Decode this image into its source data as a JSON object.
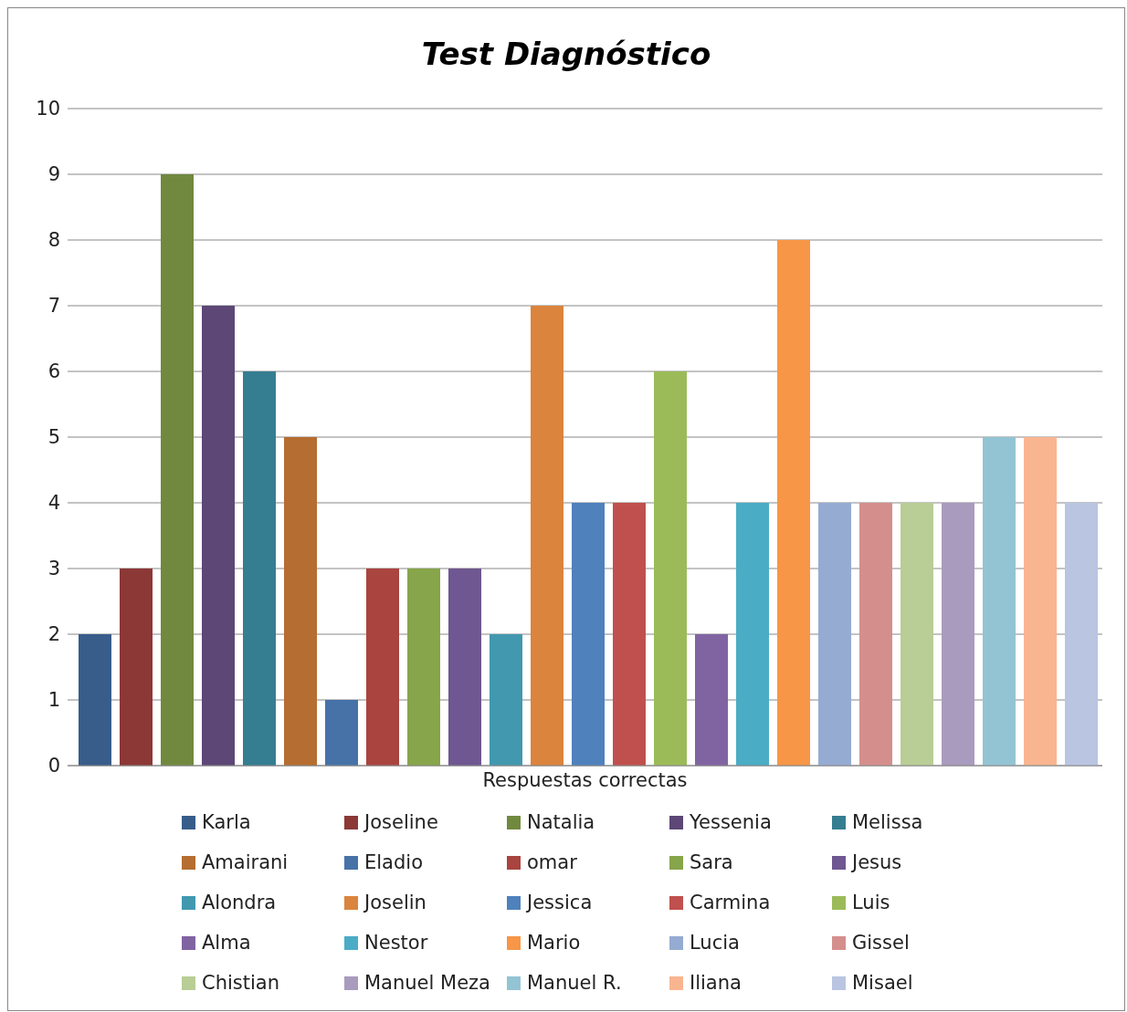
{
  "chart_data": {
    "type": "bar",
    "title": "Test Diagnóstico",
    "categories": [
      "Respuestas correctas"
    ],
    "ylim": [
      0,
      10
    ],
    "yticks": [
      0,
      1,
      2,
      3,
      4,
      5,
      6,
      7,
      8,
      9,
      10
    ],
    "grid": "y",
    "legend": "bottom",
    "series": [
      {
        "name": "Karla",
        "color": "#385d8a",
        "values": [
          2
        ]
      },
      {
        "name": "Joseline",
        "color": "#8c3836",
        "values": [
          3
        ]
      },
      {
        "name": "Natalia",
        "color": "#71893f",
        "values": [
          9
        ]
      },
      {
        "name": "Yessenia",
        "color": "#5c4776",
        "values": [
          7
        ]
      },
      {
        "name": "Melissa",
        "color": "#357d91",
        "values": [
          6
        ]
      },
      {
        "name": "Amairani",
        "color": "#b66d31",
        "values": [
          5
        ]
      },
      {
        "name": "Eladio",
        "color": "#4672a8",
        "values": [
          1
        ]
      },
      {
        "name": "omar",
        "color": "#a9443f",
        "values": [
          3
        ]
      },
      {
        "name": "Sara",
        "color": "#87a54a",
        "values": [
          3
        ]
      },
      {
        "name": "Jesus",
        "color": "#6f5791",
        "values": [
          3
        ]
      },
      {
        "name": "Alondra",
        "color": "#4298af",
        "values": [
          2
        ]
      },
      {
        "name": "Joselin",
        "color": "#db843d",
        "values": [
          7
        ]
      },
      {
        "name": "Jessica",
        "color": "#4f81bd",
        "values": [
          4
        ]
      },
      {
        "name": "Carmina",
        "color": "#c0504d",
        "values": [
          4
        ]
      },
      {
        "name": "Luis",
        "color": "#9bbb59",
        "values": [
          6
        ]
      },
      {
        "name": "Alma",
        "color": "#8064a2",
        "values": [
          2
        ]
      },
      {
        "name": "Nestor",
        "color": "#4bacc6",
        "values": [
          4
        ]
      },
      {
        "name": "Mario",
        "color": "#f79646",
        "values": [
          8
        ]
      },
      {
        "name": "Lucia",
        "color": "#95abd2",
        "values": [
          4
        ]
      },
      {
        "name": "Gissel",
        "color": "#d48f8d",
        "values": [
          4
        ]
      },
      {
        "name": "Chistian",
        "color": "#b9cd96",
        "values": [
          4
        ]
      },
      {
        "name": "Manuel Meza",
        "color": "#a99bbd",
        "values": [
          4
        ]
      },
      {
        "name": "Manuel R.",
        "color": "#93c4d4",
        "values": [
          5
        ]
      },
      {
        "name": "Iliana",
        "color": "#f9b590",
        "values": [
          5
        ]
      },
      {
        "name": "Misael",
        "color": "#b9c5e1",
        "values": [
          4
        ]
      }
    ]
  }
}
